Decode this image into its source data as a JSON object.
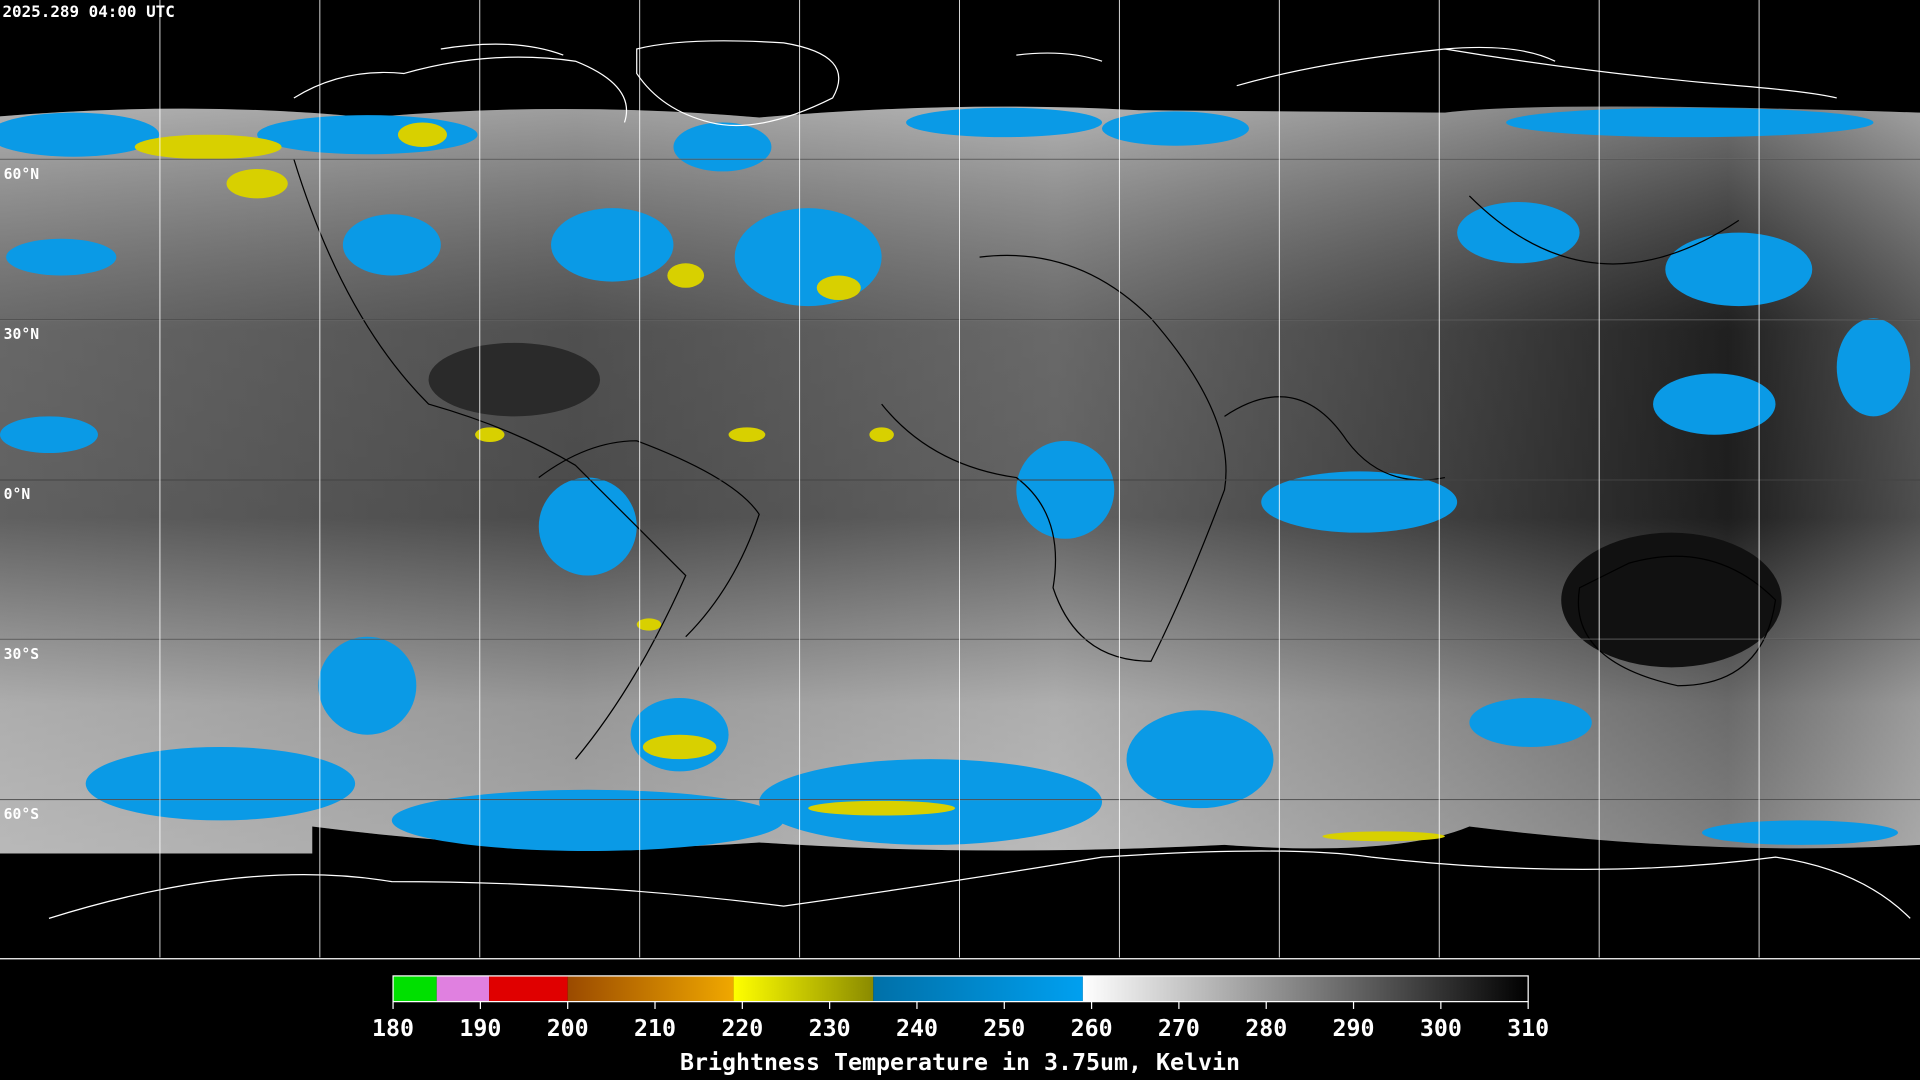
{
  "header": {
    "timestamp": "2025.289 04:00 UTC"
  },
  "map": {
    "latitude_labels": [
      "60°N",
      "30°N",
      "0°N",
      "30°S",
      "60°S"
    ]
  },
  "colorbar": {
    "title": "Brightness Temperature in 3.75um, Kelvin",
    "range": [
      180,
      310
    ],
    "ticks": [
      180,
      190,
      200,
      210,
      220,
      230,
      240,
      250,
      260,
      270,
      280,
      290,
      300,
      310
    ],
    "segments": [
      {
        "from": 180,
        "to": 185,
        "colors": [
          "#00e000",
          "#00e000"
        ]
      },
      {
        "from": 185,
        "to": 191,
        "colors": [
          "#e080e0",
          "#e080e0"
        ]
      },
      {
        "from": 191,
        "to": 200,
        "colors": [
          "#e00000",
          "#e00000"
        ]
      },
      {
        "from": 200,
        "to": 219,
        "colors": [
          "#9a4a00",
          "#f0a800"
        ]
      },
      {
        "from": 219,
        "to": 235,
        "colors": [
          "#ffff00",
          "#8a8a00"
        ]
      },
      {
        "from": 235,
        "to": 259,
        "colors": [
          "#0070a8",
          "#00a0f0"
        ]
      },
      {
        "from": 259,
        "to": 310,
        "colors": [
          "#ffffff",
          "#000000"
        ]
      }
    ]
  }
}
